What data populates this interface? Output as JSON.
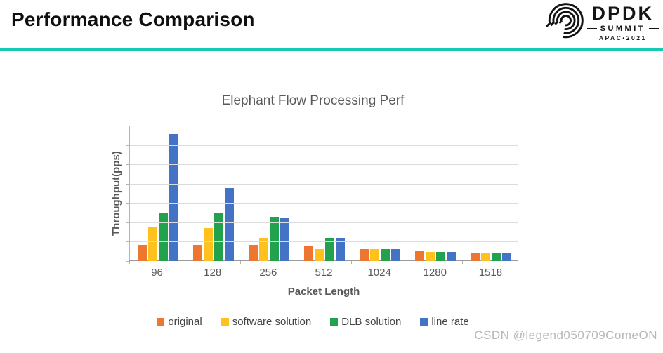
{
  "header": {
    "title": "Performance Comparison",
    "accent_color": "#17C9B2",
    "logo": {
      "name": "DPDK",
      "subtitle": "SUMMIT",
      "edition": "APAC•2021"
    }
  },
  "watermark": "CSDN @legend050709ComeON",
  "chart_data": {
    "type": "bar",
    "title": "Elephant Flow Processing Perf",
    "xlabel": "Packet Length",
    "ylabel": "Throughput(pps)",
    "categories": [
      "96",
      "128",
      "256",
      "512",
      "1024",
      "1280",
      "1518"
    ],
    "series": [
      {
        "name": "original",
        "color": "#ED7631",
        "values": [
          0.83,
          0.83,
          0.82,
          0.81,
          0.62,
          0.5,
          0.41
        ]
      },
      {
        "name": "software solution",
        "color": "#FFC11E",
        "values": [
          1.78,
          1.72,
          1.21,
          0.63,
          0.61,
          0.49,
          0.4
        ]
      },
      {
        "name": "DLB solution",
        "color": "#22A24C",
        "values": [
          2.46,
          2.49,
          2.27,
          1.19,
          0.61,
          0.49,
          0.4
        ]
      },
      {
        "name": "line rate",
        "color": "#4472C4",
        "values": [
          6.55,
          3.78,
          2.2,
          1.19,
          0.6,
          0.48,
          0.39
        ]
      }
    ],
    "ylim": [
      0,
      7
    ],
    "gridline_intervals": 7,
    "grid": true,
    "y_tick_labels_visible": false,
    "legend_position": "bottom"
  }
}
